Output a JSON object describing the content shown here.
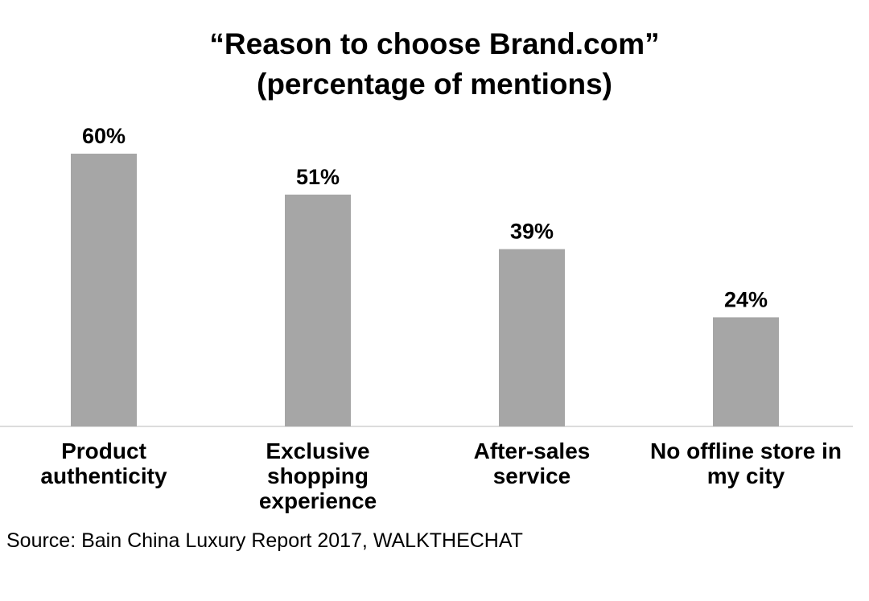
{
  "chart_data": {
    "type": "bar",
    "title": "“Reason to choose Brand.com”",
    "subtitle": "(percentage of mentions)",
    "categories": [
      [
        "Product",
        "authenticity"
      ],
      [
        "Exclusive",
        "shopping",
        "experience"
      ],
      [
        "After-sales",
        "service"
      ],
      [
        "No offline store in",
        "my city"
      ]
    ],
    "values": [
      60,
      51,
      39,
      24
    ],
    "data_labels": [
      "60%",
      "51%",
      "39%",
      "24%"
    ],
    "ylim": [
      0,
      60
    ],
    "bar_color": "#a6a6a6",
    "axis_color": "#d0d0d0",
    "grid": false
  },
  "source": "Source: Bain China Luxury Report 2017, WALKTHECHAT"
}
